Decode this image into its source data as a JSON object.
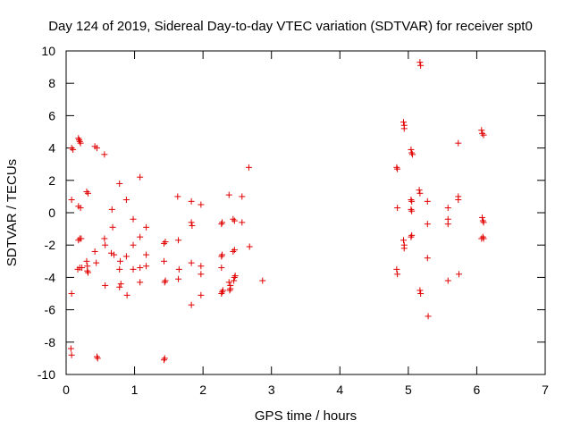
{
  "chart_data": {
    "type": "scatter",
    "title": "Day 124 of 2019, Sidereal Day-to-day VTEC variation (SDTVAR) for receiver spt0",
    "xlabel": "GPS time / hours",
    "ylabel": "SDTVAR / TECUs",
    "xlim": [
      0,
      7
    ],
    "ylim": [
      -10,
      10
    ],
    "xticks": [
      0,
      1,
      2,
      3,
      4,
      5,
      6,
      7
    ],
    "yticks": [
      -10,
      -8,
      -6,
      -4,
      -2,
      0,
      2,
      4,
      6,
      8,
      10
    ],
    "grid": false,
    "marker": "+",
    "marker_color": "#e00000",
    "series": [
      {
        "name": "SDTVAR",
        "points": [
          [
            0.07,
            -8.4
          ],
          [
            0.08,
            -8.8
          ],
          [
            0.08,
            -5.0
          ],
          [
            0.08,
            0.8
          ],
          [
            0.08,
            4.0
          ],
          [
            0.1,
            3.9
          ],
          [
            0.18,
            4.6
          ],
          [
            0.19,
            4.5
          ],
          [
            0.2,
            4.4
          ],
          [
            0.21,
            4.3
          ],
          [
            0.18,
            0.4
          ],
          [
            0.21,
            0.3
          ],
          [
            0.18,
            -1.7
          ],
          [
            0.2,
            -1.6
          ],
          [
            0.22,
            -1.6
          ],
          [
            0.17,
            -3.5
          ],
          [
            0.2,
            -3.4
          ],
          [
            0.23,
            -3.4
          ],
          [
            0.3,
            1.3
          ],
          [
            0.32,
            1.2
          ],
          [
            0.3,
            -3.0
          ],
          [
            0.31,
            -3.3
          ],
          [
            0.31,
            -3.6
          ],
          [
            0.32,
            -3.7
          ],
          [
            0.42,
            4.1
          ],
          [
            0.45,
            4.0
          ],
          [
            0.42,
            -2.4
          ],
          [
            0.44,
            -3.1
          ],
          [
            0.45,
            -8.9
          ],
          [
            0.46,
            -9.0
          ],
          [
            0.56,
            3.6
          ],
          [
            0.56,
            -1.6
          ],
          [
            0.57,
            -2.0
          ],
          [
            0.57,
            -4.5
          ],
          [
            0.67,
            0.2
          ],
          [
            0.68,
            -0.9
          ],
          [
            0.66,
            -2.5
          ],
          [
            0.7,
            -2.6
          ],
          [
            0.78,
            1.8
          ],
          [
            0.79,
            -3.0
          ],
          [
            0.78,
            -3.5
          ],
          [
            0.8,
            -4.4
          ],
          [
            0.78,
            -4.6
          ],
          [
            0.88,
            0.8
          ],
          [
            0.88,
            -2.7
          ],
          [
            0.89,
            -5.1
          ],
          [
            0.98,
            -0.4
          ],
          [
            0.98,
            -2.0
          ],
          [
            0.98,
            -3.5
          ],
          [
            1.08,
            2.2
          ],
          [
            1.08,
            -1.5
          ],
          [
            1.08,
            -3.4
          ],
          [
            1.08,
            -4.3
          ],
          [
            1.17,
            -0.9
          ],
          [
            1.17,
            -2.6
          ],
          [
            1.17,
            -3.3
          ],
          [
            1.43,
            -1.9
          ],
          [
            1.45,
            -1.8
          ],
          [
            1.43,
            -3.0
          ],
          [
            1.44,
            -4.3
          ],
          [
            1.45,
            -4.2
          ],
          [
            1.44,
            -9.0
          ],
          [
            1.43,
            -9.1
          ],
          [
            1.63,
            1.0
          ],
          [
            1.64,
            -1.7
          ],
          [
            1.65,
            -3.5
          ],
          [
            1.64,
            -4.1
          ],
          [
            1.83,
            0.7
          ],
          [
            1.83,
            -0.6
          ],
          [
            1.84,
            -0.8
          ],
          [
            1.83,
            -3.1
          ],
          [
            1.83,
            -5.7
          ],
          [
            1.97,
            0.5
          ],
          [
            1.97,
            -3.3
          ],
          [
            1.97,
            -3.8
          ],
          [
            1.97,
            -5.1
          ],
          [
            2.27,
            -0.7
          ],
          [
            2.28,
            -0.6
          ],
          [
            2.27,
            -2.7
          ],
          [
            2.28,
            -2.6
          ],
          [
            2.27,
            -3.4
          ],
          [
            2.27,
            -5.0
          ],
          [
            2.28,
            -4.9
          ],
          [
            2.29,
            -4.8
          ],
          [
            2.38,
            1.1
          ],
          [
            2.38,
            -4.3
          ],
          [
            2.39,
            -4.8
          ],
          [
            2.4,
            -4.7
          ],
          [
            2.4,
            -4.5
          ],
          [
            2.44,
            -0.4
          ],
          [
            2.46,
            -0.5
          ],
          [
            2.44,
            -2.4
          ],
          [
            2.46,
            -2.3
          ],
          [
            2.46,
            -4.0
          ],
          [
            2.47,
            -3.9
          ],
          [
            2.45,
            -4.2
          ],
          [
            2.57,
            1.0
          ],
          [
            2.57,
            -0.6
          ],
          [
            2.67,
            2.8
          ],
          [
            2.68,
            -2.1
          ],
          [
            2.87,
            -4.2
          ],
          [
            4.83,
            2.8
          ],
          [
            4.84,
            2.7
          ],
          [
            4.84,
            0.3
          ],
          [
            4.83,
            -3.5
          ],
          [
            4.84,
            -3.8
          ],
          [
            4.93,
            5.6
          ],
          [
            4.94,
            5.4
          ],
          [
            4.94,
            5.2
          ],
          [
            4.93,
            -1.7
          ],
          [
            4.94,
            -2.0
          ],
          [
            4.94,
            -2.2
          ],
          [
            5.04,
            3.9
          ],
          [
            5.05,
            3.7
          ],
          [
            5.06,
            3.6
          ],
          [
            5.04,
            0.8
          ],
          [
            5.05,
            0.7
          ],
          [
            5.04,
            0.2
          ],
          [
            5.05,
            0.1
          ],
          [
            5.04,
            -1.5
          ],
          [
            5.05,
            -1.4
          ],
          [
            5.17,
            9.3
          ],
          [
            5.18,
            9.1
          ],
          [
            5.16,
            1.4
          ],
          [
            5.17,
            1.2
          ],
          [
            5.17,
            -4.8
          ],
          [
            5.18,
            -5.0
          ],
          [
            5.28,
            0.7
          ],
          [
            5.28,
            -0.7
          ],
          [
            5.28,
            -2.8
          ],
          [
            5.29,
            -6.4
          ],
          [
            5.58,
            0.3
          ],
          [
            5.58,
            -0.4
          ],
          [
            5.58,
            -0.7
          ],
          [
            5.58,
            -4.2
          ],
          [
            5.73,
            4.3
          ],
          [
            5.73,
            1.0
          ],
          [
            5.73,
            0.8
          ],
          [
            5.74,
            -3.8
          ],
          [
            6.07,
            5.1
          ],
          [
            6.08,
            4.9
          ],
          [
            6.1,
            4.8
          ],
          [
            6.08,
            -0.3
          ],
          [
            6.09,
            -0.5
          ],
          [
            6.1,
            -0.6
          ],
          [
            6.07,
            -1.6
          ],
          [
            6.09,
            -1.5
          ],
          [
            6.1,
            -1.6
          ]
        ]
      }
    ]
  }
}
